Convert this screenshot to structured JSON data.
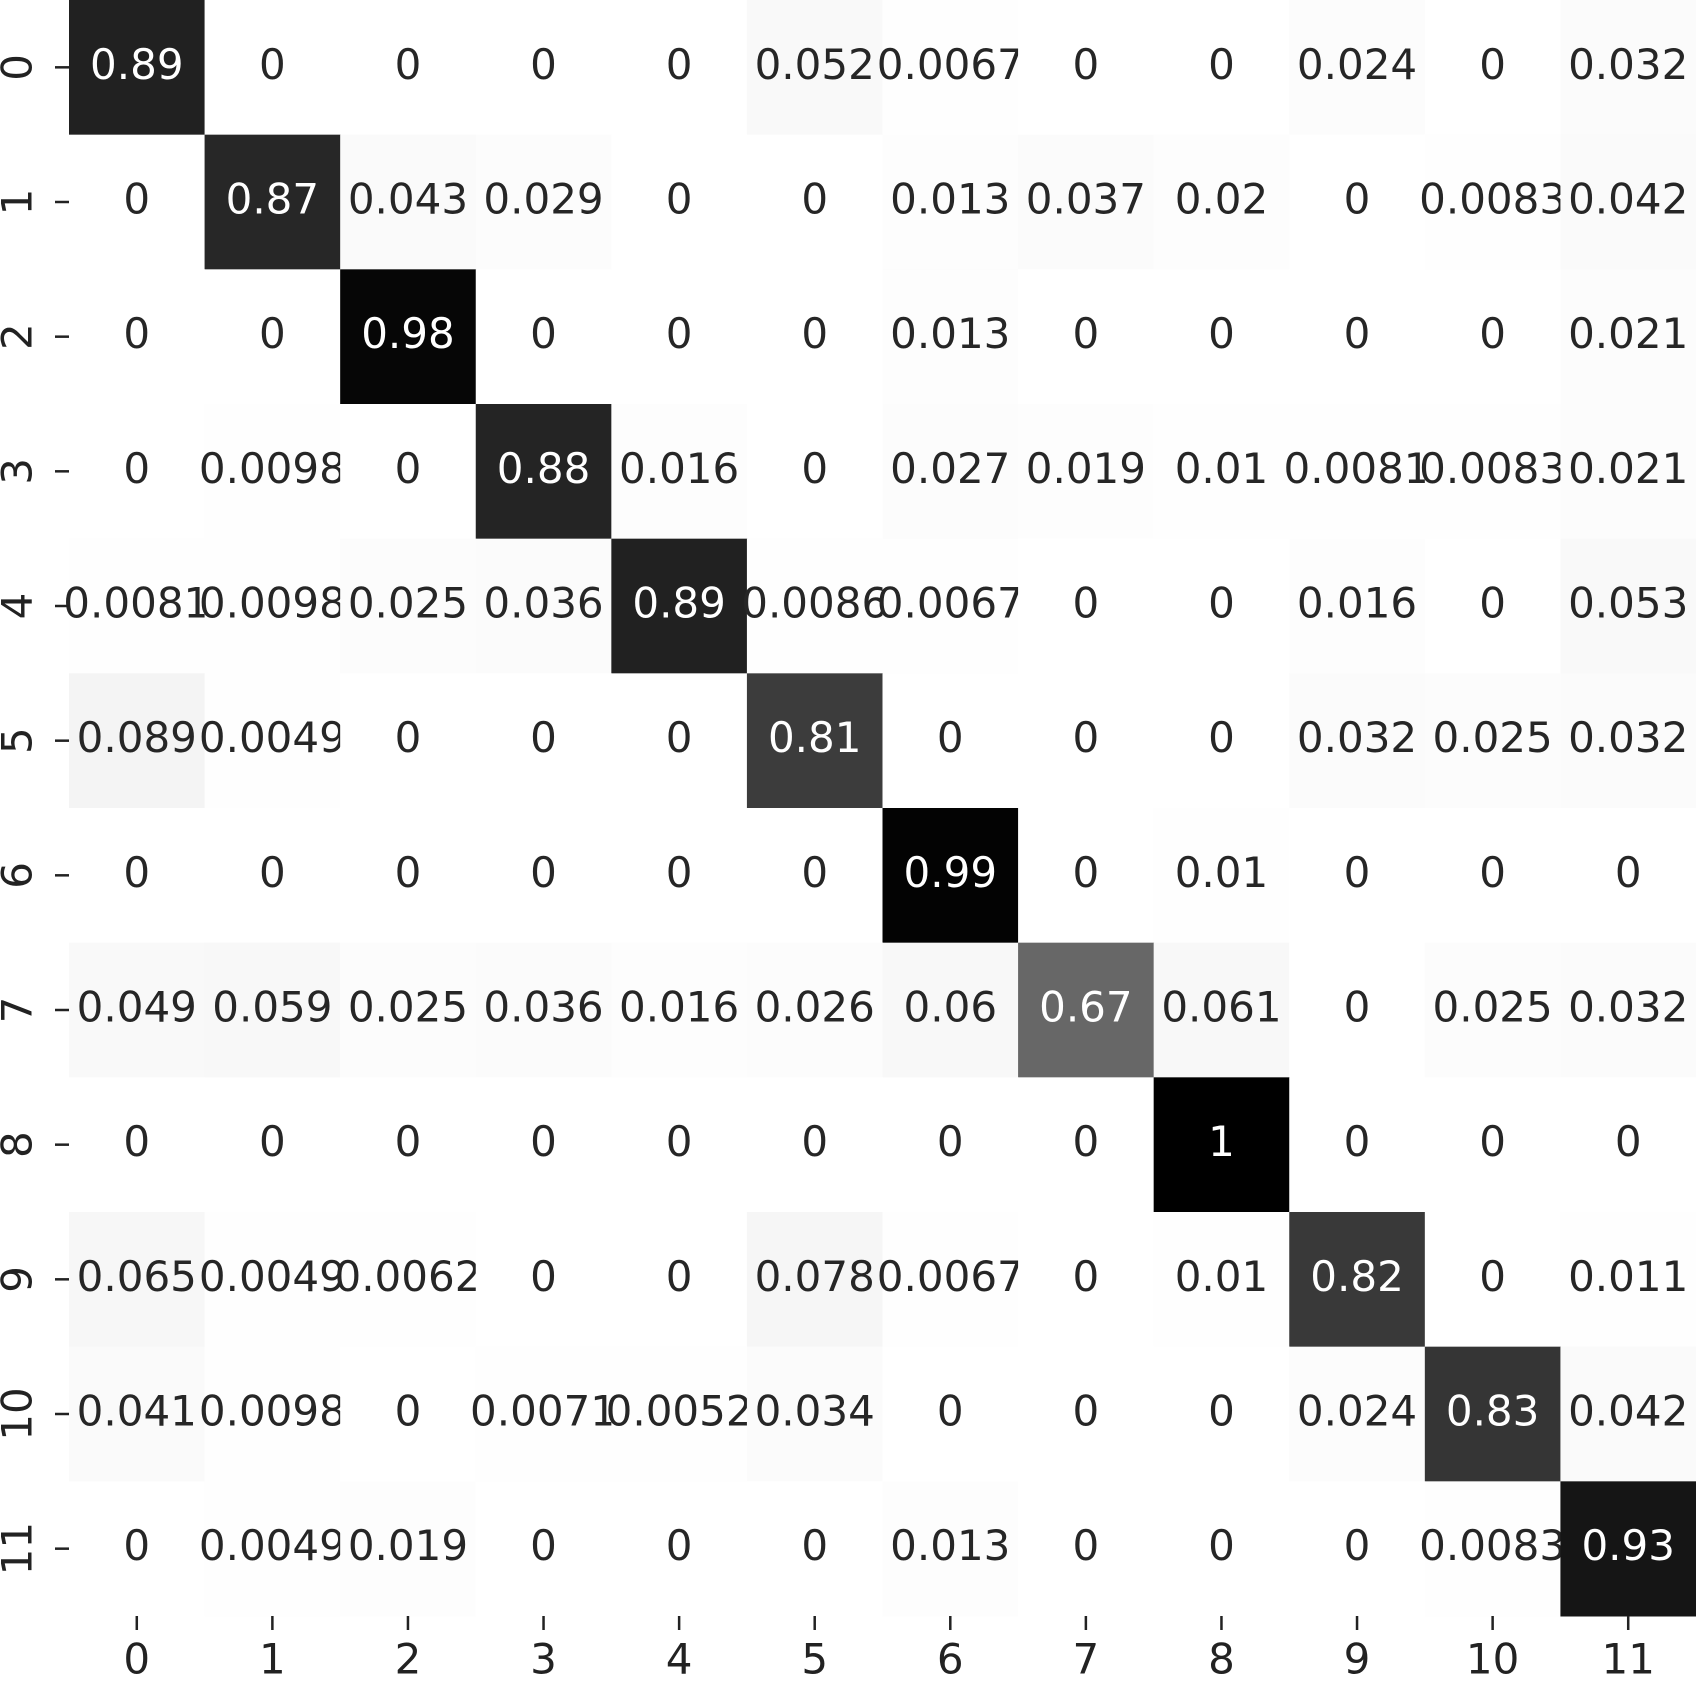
{
  "chart_data": {
    "type": "heatmap",
    "colormap": "Greys",
    "vlim": [
      0,
      1
    ],
    "categories": [
      "0",
      "1",
      "2",
      "3",
      "4",
      "5",
      "6",
      "7",
      "8",
      "9",
      "10",
      "11"
    ],
    "y_categories": [
      "0",
      "1",
      "2",
      "3",
      "4",
      "5",
      "6",
      "7",
      "8",
      "9",
      "10",
      "11"
    ],
    "z": [
      [
        0.89,
        0,
        0,
        0,
        0,
        0.052,
        0.0067,
        0,
        0,
        0.024,
        0,
        0.032
      ],
      [
        0,
        0.87,
        0.043,
        0.029,
        0,
        0,
        0.013,
        0.037,
        0.02,
        0,
        0.0083,
        0.042
      ],
      [
        0,
        0,
        0.98,
        0,
        0,
        0,
        0.013,
        0,
        0,
        0,
        0,
        0.021
      ],
      [
        0,
        0.0098,
        0,
        0.88,
        0.016,
        0,
        0.027,
        0.019,
        0.01,
        0.0081,
        0.0083,
        0.021
      ],
      [
        0.0081,
        0.0098,
        0.025,
        0.036,
        0.89,
        0.0086,
        0.0067,
        0,
        0,
        0.016,
        0,
        0.053
      ],
      [
        0.089,
        0.0049,
        0,
        0,
        0,
        0.81,
        0,
        0,
        0,
        0.032,
        0.025,
        0.032
      ],
      [
        0,
        0,
        0,
        0,
        0,
        0,
        0.99,
        0,
        0.01,
        0,
        0,
        0
      ],
      [
        0.049,
        0.059,
        0.025,
        0.036,
        0.016,
        0.026,
        0.06,
        0.67,
        0.061,
        0,
        0.025,
        0.032
      ],
      [
        0,
        0,
        0,
        0,
        0,
        0,
        0,
        0,
        1,
        0,
        0,
        0
      ],
      [
        0.065,
        0.0049,
        0.0062,
        0,
        0,
        0.078,
        0.0067,
        0,
        0.01,
        0.82,
        0,
        0.011
      ],
      [
        0.041,
        0.0098,
        0,
        0.0071,
        0.0052,
        0.034,
        0,
        0,
        0,
        0.024,
        0.83,
        0.042
      ],
      [
        0,
        0.0049,
        0.019,
        0,
        0,
        0,
        0.013,
        0,
        0,
        0,
        0.0083,
        0.93
      ]
    ]
  }
}
